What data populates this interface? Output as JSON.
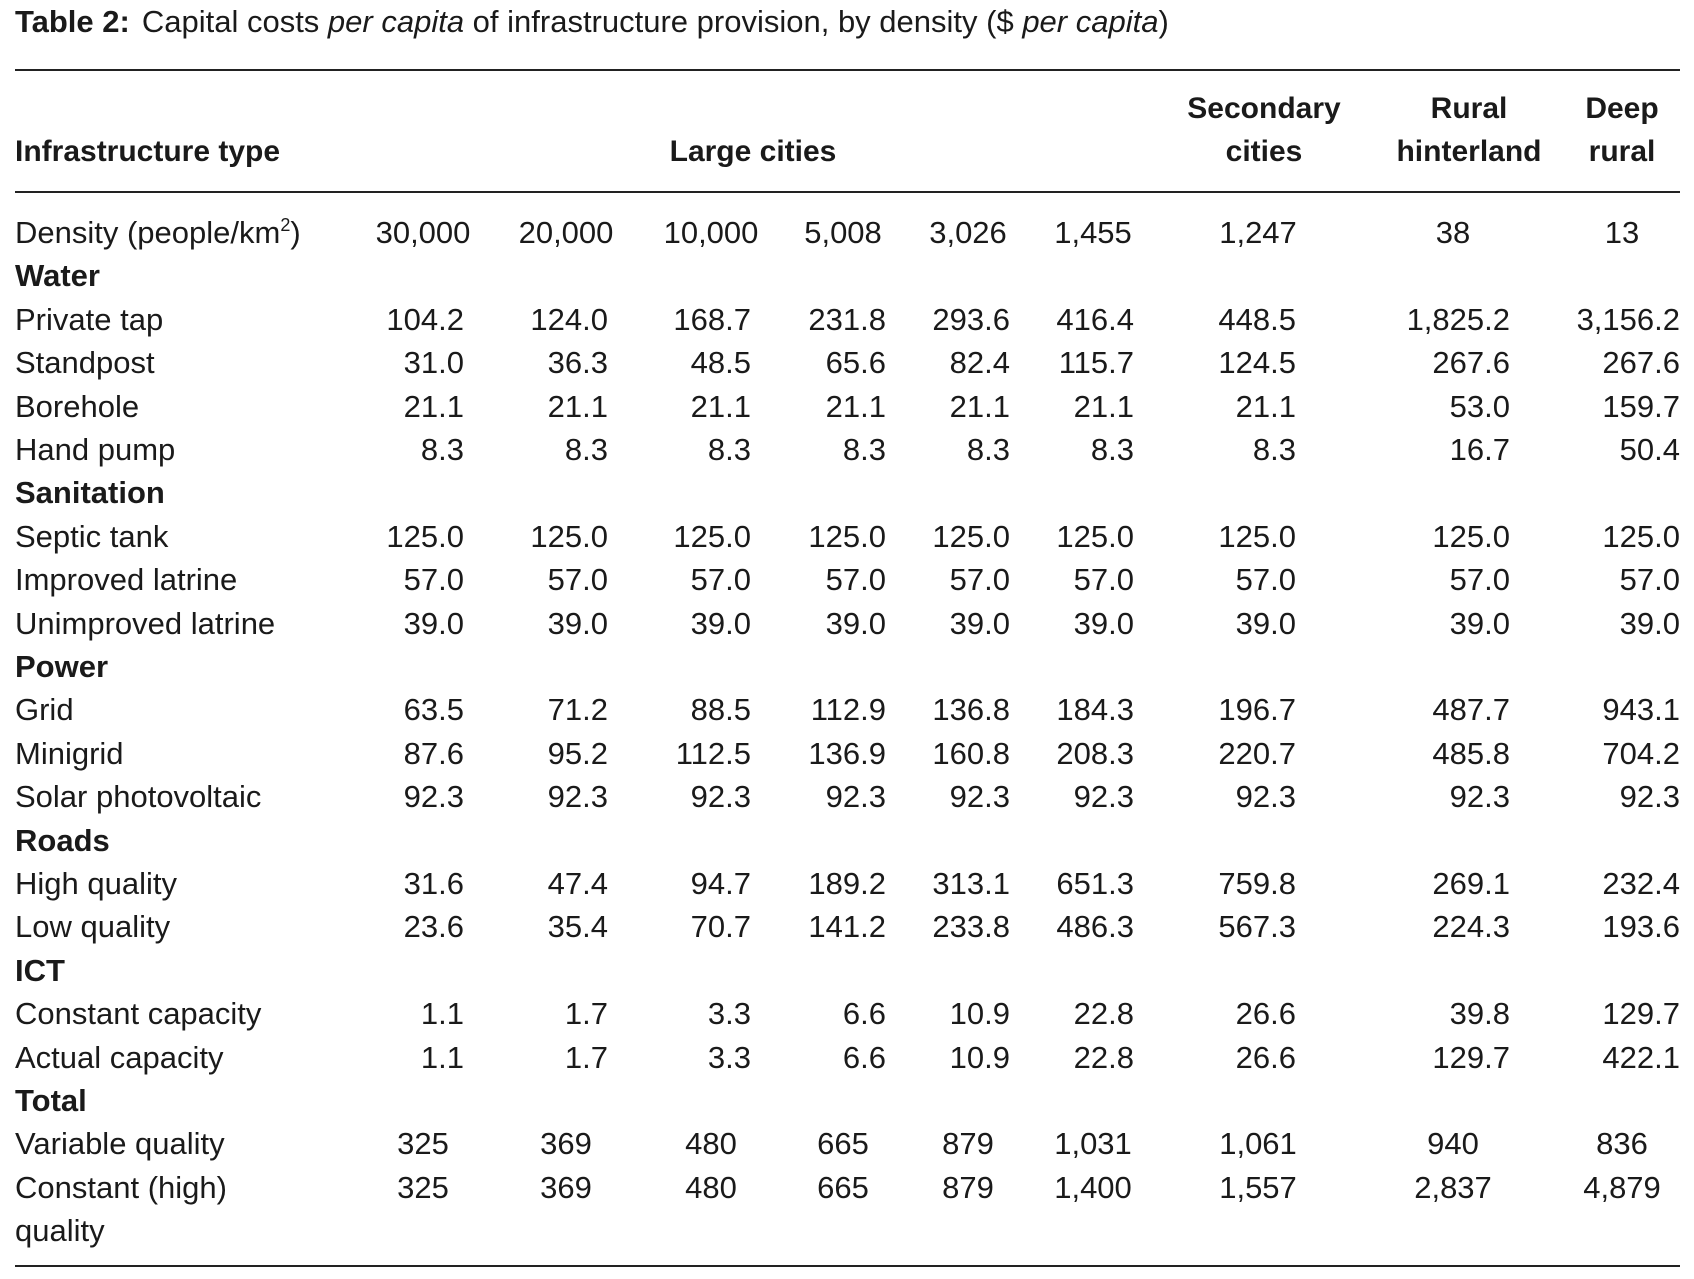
{
  "title": {
    "label": "Table 2:",
    "parts": [
      "Capital costs ",
      "per capita",
      " of infrastructure provision, by density ($ ",
      "per capita",
      ")"
    ]
  },
  "table": {
    "header": [
      "Infrastructure type",
      "Large cities",
      "Secondary cities",
      "Rural hinterland",
      "Deep rural"
    ],
    "density": {
      "label": [
        "Density (people/km",
        "2",
        ")"
      ],
      "values": [
        "30,000",
        "20,000",
        "10,000",
        "5,008",
        "3,026",
        "1,455",
        "1,247",
        "38",
        "13"
      ]
    },
    "sections": [
      {
        "name": "Water",
        "rows": [
          {
            "label": "Private tap",
            "values": [
              "104.2",
              "124.0",
              "168.7",
              "231.8",
              "293.6",
              "416.4",
              "448.5",
              "1,825.2",
              "3,156.2"
            ]
          },
          {
            "label": "Standpost",
            "values": [
              "31.0",
              "36.3",
              "48.5",
              "65.6",
              "82.4",
              "115.7",
              "124.5",
              "267.6",
              "267.6"
            ]
          },
          {
            "label": "Borehole",
            "values": [
              "21.1",
              "21.1",
              "21.1",
              "21.1",
              "21.1",
              "21.1",
              "21.1",
              "53.0",
              "159.7"
            ]
          },
          {
            "label": "Hand pump",
            "values": [
              "8.3",
              "8.3",
              "8.3",
              "8.3",
              "8.3",
              "8.3",
              "8.3",
              "16.7",
              "50.4"
            ]
          }
        ]
      },
      {
        "name": "Sanitation",
        "rows": [
          {
            "label": "Septic tank",
            "values": [
              "125.0",
              "125.0",
              "125.0",
              "125.0",
              "125.0",
              "125.0",
              "125.0",
              "125.0",
              "125.0"
            ]
          },
          {
            "label": "Improved latrine",
            "values": [
              "57.0",
              "57.0",
              "57.0",
              "57.0",
              "57.0",
              "57.0",
              "57.0",
              "57.0",
              "57.0"
            ]
          },
          {
            "label": "Unimproved latrine",
            "values": [
              "39.0",
              "39.0",
              "39.0",
              "39.0",
              "39.0",
              "39.0",
              "39.0",
              "39.0",
              "39.0"
            ]
          }
        ]
      },
      {
        "name": "Power",
        "rows": [
          {
            "label": "Grid",
            "values": [
              "63.5",
              "71.2",
              "88.5",
              "112.9",
              "136.8",
              "184.3",
              "196.7",
              "487.7",
              "943.1"
            ]
          },
          {
            "label": "Minigrid",
            "values": [
              "87.6",
              "95.2",
              "112.5",
              "136.9",
              "160.8",
              "208.3",
              "220.7",
              "485.8",
              "704.2"
            ]
          },
          {
            "label": "Solar photovoltaic",
            "values": [
              "92.3",
              "92.3",
              "92.3",
              "92.3",
              "92.3",
              "92.3",
              "92.3",
              "92.3",
              "92.3"
            ]
          }
        ]
      },
      {
        "name": "Roads",
        "rows": [
          {
            "label": "High quality",
            "values": [
              "31.6",
              "47.4",
              "94.7",
              "189.2",
              "313.1",
              "651.3",
              "759.8",
              "269.1",
              "232.4"
            ]
          },
          {
            "label": "Low quality",
            "values": [
              "23.6",
              "35.4",
              "70.7",
              "141.2",
              "233.8",
              "486.3",
              "567.3",
              "224.3",
              "193.6"
            ]
          }
        ]
      },
      {
        "name": "ICT",
        "rows": [
          {
            "label": "Constant capacity",
            "values": [
              "1.1",
              "1.7",
              "3.3",
              "6.6",
              "10.9",
              "22.8",
              "26.6",
              "39.8",
              "129.7"
            ]
          },
          {
            "label": "Actual capacity",
            "values": [
              "1.1",
              "1.7",
              "3.3",
              "6.6",
              "10.9",
              "22.8",
              "26.6",
              "129.7",
              "422.1"
            ]
          }
        ]
      },
      {
        "name": "Total",
        "rows": [
          {
            "label": "Variable quality",
            "values": [
              "325",
              "369",
              "480",
              "665",
              "879",
              "1,031",
              "1,061",
              "940",
              "836"
            ]
          },
          {
            "label": "Constant (high) quality",
            "values": [
              "325",
              "369",
              "480",
              "665",
              "879",
              "1,400",
              "1,557",
              "2,837",
              "4,879"
            ]
          }
        ]
      }
    ]
  }
}
